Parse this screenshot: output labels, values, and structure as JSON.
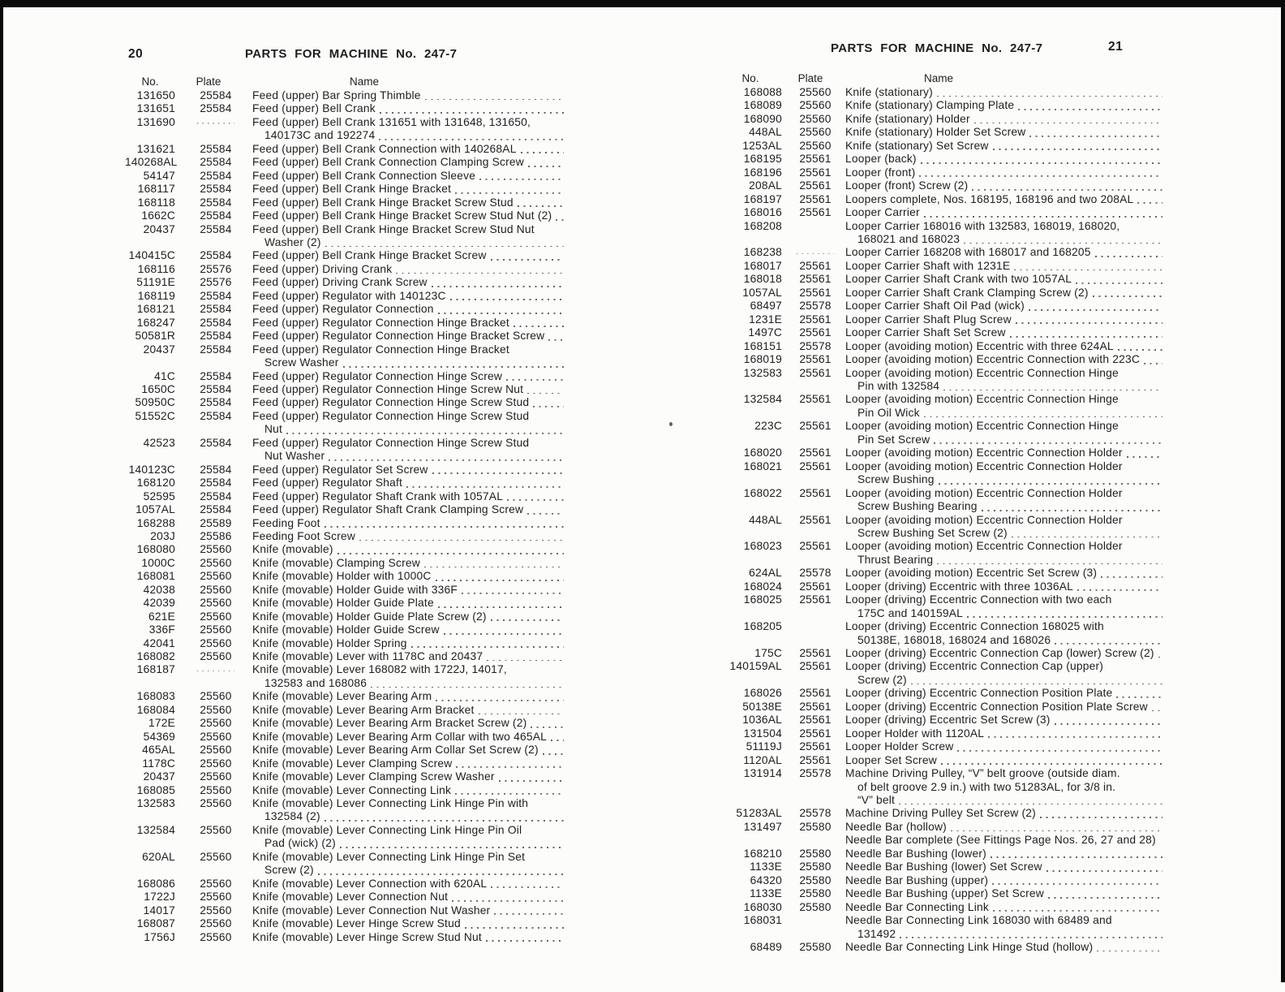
{
  "left": {
    "page_number": "20",
    "title": "PARTS FOR MACHINE No. 247-7",
    "columns": {
      "no": "No.",
      "plate": "Plate",
      "name": "Name"
    },
    "rows": [
      {
        "n": "131650",
        "p": "25584",
        "l": [
          "Feed (upper) Bar Spring Thimble"
        ]
      },
      {
        "n": "131651",
        "p": "25584",
        "l": [
          "Feed (upper) Bell Crank"
        ]
      },
      {
        "n": "131690",
        "p": "",
        "pd": true,
        "l": [
          "Feed (upper) Bell Crank 131651 with 131648, 131650,",
          "140173C and 192274"
        ]
      },
      {
        "n": "131621",
        "p": "25584",
        "l": [
          "Feed (upper) Bell Crank Connection with 140268AL"
        ]
      },
      {
        "n": "140268AL",
        "p": "25584",
        "l": [
          "Feed (upper) Bell Crank Connection Clamping Screw"
        ]
      },
      {
        "n": "54147",
        "p": "25584",
        "l": [
          "Feed (upper) Bell Crank Connection Sleeve"
        ]
      },
      {
        "n": "168117",
        "p": "25584",
        "l": [
          "Feed (upper) Bell Crank Hinge Bracket"
        ]
      },
      {
        "n": "168118",
        "p": "25584",
        "l": [
          "Feed (upper) Bell Crank Hinge Bracket Screw Stud"
        ]
      },
      {
        "n": "1662C",
        "p": "25584",
        "l": [
          "Feed (upper) Bell Crank Hinge Bracket Screw Stud Nut (2)"
        ]
      },
      {
        "n": "20437",
        "p": "25584",
        "l": [
          "Feed (upper) Bell Crank Hinge Bracket Screw Stud Nut",
          "Washer (2)"
        ]
      },
      {
        "n": "140415C",
        "p": "25584",
        "l": [
          "Feed (upper) Bell Crank Hinge Bracket Screw"
        ]
      },
      {
        "n": "168116",
        "p": "25576",
        "l": [
          "Feed (upper) Driving Crank"
        ]
      },
      {
        "n": "51191E",
        "p": "25576",
        "l": [
          "Feed (upper) Driving Crank Screw"
        ]
      },
      {
        "n": "168119",
        "p": "25584",
        "l": [
          "Feed (upper) Regulator with 140123C"
        ]
      },
      {
        "n": "168121",
        "p": "25584",
        "l": [
          "Feed (upper) Regulator Connection"
        ]
      },
      {
        "n": "168247",
        "p": "25584",
        "l": [
          "Feed (upper) Regulator Connection Hinge Bracket"
        ]
      },
      {
        "n": "50581R",
        "p": "25584",
        "l": [
          "Feed (upper) Regulator Connection Hinge Bracket Screw"
        ]
      },
      {
        "n": "20437",
        "p": "25584",
        "l": [
          "Feed (upper) Regulator Connection Hinge Bracket",
          "Screw Washer"
        ]
      },
      {
        "n": "41C",
        "p": "25584",
        "l": [
          "Feed (upper) Regulator Connection Hinge Screw"
        ]
      },
      {
        "n": "1650C",
        "p": "25584",
        "l": [
          "Feed (upper) Regulator Connection Hinge Screw Nut"
        ]
      },
      {
        "n": "50950C",
        "p": "25584",
        "l": [
          "Feed (upper) Regulator Connection Hinge Screw Stud"
        ]
      },
      {
        "n": "51552C",
        "p": "25584",
        "l": [
          "Feed (upper) Regulator Connection Hinge Screw Stud",
          "Nut"
        ]
      },
      {
        "n": "42523",
        "p": "25584",
        "l": [
          "Feed (upper) Regulator Connection Hinge Screw Stud",
          "Nut Washer"
        ]
      },
      {
        "n": "140123C",
        "p": "25584",
        "l": [
          "Feed (upper) Regulator Set Screw"
        ]
      },
      {
        "n": "168120",
        "p": "25584",
        "l": [
          "Feed (upper) Regulator Shaft"
        ]
      },
      {
        "n": "52595",
        "p": "25584",
        "l": [
          "Feed (upper) Regulator Shaft Crank with 1057AL"
        ]
      },
      {
        "n": "1057AL",
        "p": "25584",
        "l": [
          "Feed (upper) Regulator Shaft Crank Clamping Screw"
        ]
      },
      {
        "n": "168288",
        "p": "25589",
        "l": [
          "Feeding Foot"
        ]
      },
      {
        "n": "203J",
        "p": "25586",
        "l": [
          "Feeding Foot Screw"
        ]
      },
      {
        "n": "168080",
        "p": "25560",
        "l": [
          "Knife (movable)"
        ]
      },
      {
        "n": "1000C",
        "p": "25560",
        "l": [
          "Knife (movable) Clamping Screw"
        ]
      },
      {
        "n": "168081",
        "p": "25560",
        "l": [
          "Knife (movable) Holder with 1000C"
        ]
      },
      {
        "n": "42038",
        "p": "25560",
        "l": [
          "Knife (movable) Holder Guide with 336F"
        ]
      },
      {
        "n": "42039",
        "p": "25560",
        "l": [
          "Knife (movable) Holder Guide Plate"
        ]
      },
      {
        "n": "621E",
        "p": "25560",
        "l": [
          "Knife (movable) Holder Guide Plate Screw (2)"
        ]
      },
      {
        "n": "336F",
        "p": "25560",
        "l": [
          "Knife (movable) Holder Guide Screw"
        ]
      },
      {
        "n": "42041",
        "p": "25560",
        "l": [
          "Knife (movable) Holder Spring"
        ]
      },
      {
        "n": "168082",
        "p": "25560",
        "l": [
          "Knife (movable) Lever with 1178C and 20437"
        ]
      },
      {
        "n": "168187",
        "p": "",
        "pd": true,
        "l": [
          "Knife (movable) Lever 168082 with 1722J, 14017,",
          "132583 and 168086"
        ]
      },
      {
        "n": "168083",
        "p": "25560",
        "l": [
          "Knife (movable) Lever Bearing Arm"
        ]
      },
      {
        "n": "168084",
        "p": "25560",
        "l": [
          "Knife (movable) Lever Bearing Arm Bracket"
        ]
      },
      {
        "n": "172E",
        "p": "25560",
        "l": [
          "Knife (movable) Lever Bearing Arm Bracket Screw (2)"
        ]
      },
      {
        "n": "54369",
        "p": "25560",
        "l": [
          "Knife (movable) Lever Bearing Arm Collar with two 465AL"
        ]
      },
      {
        "n": "465AL",
        "p": "25560",
        "l": [
          "Knife (movable) Lever Bearing Arm Collar Set Screw (2)"
        ]
      },
      {
        "n": "1178C",
        "p": "25560",
        "l": [
          "Knife (movable) Lever Clamping Screw"
        ]
      },
      {
        "n": "20437",
        "p": "25560",
        "l": [
          "Knife (movable) Lever Clamping Screw Washer"
        ]
      },
      {
        "n": "168085",
        "p": "25560",
        "l": [
          "Knife (movable) Lever Connecting Link"
        ]
      },
      {
        "n": "132583",
        "p": "25560",
        "l": [
          "Knife (movable) Lever Connecting Link Hinge Pin with",
          "132584 (2)"
        ]
      },
      {
        "n": "132584",
        "p": "25560",
        "l": [
          "Knife (movable) Lever Connecting Link Hinge Pin Oil",
          "Pad (wick) (2)"
        ]
      },
      {
        "n": "620AL",
        "p": "25560",
        "l": [
          "Knife (movable) Lever Connecting Link Hinge Pin Set",
          "Screw (2)"
        ]
      },
      {
        "n": "168086",
        "p": "25560",
        "l": [
          "Knife (movable) Lever Connection with 620AL"
        ]
      },
      {
        "n": "1722J",
        "p": "25560",
        "l": [
          "Knife (movable) Lever Connection Nut"
        ]
      },
      {
        "n": "14017",
        "p": "25560",
        "l": [
          "Knife (movable) Lever Connection Nut Washer"
        ]
      },
      {
        "n": "168087",
        "p": "25560",
        "l": [
          "Knife (movable) Lever Hinge Screw Stud"
        ]
      },
      {
        "n": "1756J",
        "p": "25560",
        "l": [
          "Knife (movable) Lever Hinge Screw Stud Nut"
        ]
      }
    ]
  },
  "right": {
    "page_number": "21",
    "title": "PARTS FOR MACHINE No. 247-7",
    "columns": {
      "no": "No.",
      "plate": "Plate",
      "name": "Name"
    },
    "rows": [
      {
        "n": "168088",
        "p": "25560",
        "l": [
          "Knife (stationary)"
        ]
      },
      {
        "n": "168089",
        "p": "25560",
        "l": [
          "Knife (stationary) Clamping Plate"
        ]
      },
      {
        "n": "168090",
        "p": "25560",
        "l": [
          "Knife (stationary) Holder"
        ]
      },
      {
        "n": "448AL",
        "p": "25560",
        "l": [
          "Knife (stationary) Holder Set Screw"
        ]
      },
      {
        "n": "1253AL",
        "p": "25560",
        "l": [
          "Knife (stationary) Set Screw"
        ]
      },
      {
        "n": "168195",
        "p": "25561",
        "l": [
          "Looper (back)"
        ]
      },
      {
        "n": "168196",
        "p": "25561",
        "l": [
          "Looper (front)"
        ]
      },
      {
        "n": "208AL",
        "p": "25561",
        "l": [
          "Looper (front) Screw (2)"
        ]
      },
      {
        "n": "168197",
        "p": "25561",
        "l": [
          "Loopers complete, Nos. 168195, 168196 and two 208AL"
        ]
      },
      {
        "n": "168016",
        "p": "25561",
        "l": [
          "Looper Carrier"
        ]
      },
      {
        "n": "168208",
        "p": "",
        "l": [
          "Looper Carrier 168016 with 132583, 168019, 168020,",
          "168021 and 168023"
        ]
      },
      {
        "n": "168238",
        "p": "",
        "pd": true,
        "l": [
          "Looper Carrier 168208 with 168017 and 168205"
        ]
      },
      {
        "n": "168017",
        "p": "25561",
        "l": [
          "Looper Carrier Shaft with 1231E"
        ]
      },
      {
        "n": "168018",
        "p": "25561",
        "l": [
          "Looper Carrier Shaft Crank with two 1057AL"
        ]
      },
      {
        "n": "1057AL",
        "p": "25561",
        "l": [
          "Looper Carrier Shaft Crank Clamping Screw (2)"
        ]
      },
      {
        "n": "68497",
        "p": "25578",
        "l": [
          "Looper Carrier Shaft Oil Pad (wick)"
        ]
      },
      {
        "n": "1231E",
        "p": "25561",
        "l": [
          "Looper Carrier Shaft Plug Screw"
        ]
      },
      {
        "n": "1497C",
        "p": "25561",
        "l": [
          "Looper Carrier Shaft Set Screw"
        ]
      },
      {
        "n": "168151",
        "p": "25578",
        "l": [
          "Looper (avoiding motion) Eccentric with three 624AL"
        ]
      },
      {
        "n": "168019",
        "p": "25561",
        "l": [
          "Looper (avoiding motion) Eccentric Connection with 223C"
        ]
      },
      {
        "n": "132583",
        "p": "25561",
        "l": [
          "Looper (avoiding motion) Eccentric Connection Hinge",
          "Pin with 132584"
        ]
      },
      {
        "n": "132584",
        "p": "25561",
        "l": [
          "Looper (avoiding motion) Eccentric Connection Hinge",
          "Pin Oil Wick"
        ]
      },
      {
        "n": "223C",
        "p": "25561",
        "l": [
          "Looper (avoiding motion) Eccentric Connection Hinge",
          "Pin Set Screw"
        ]
      },
      {
        "n": "168020",
        "p": "25561",
        "l": [
          "Looper (avoiding motion) Eccentric Connection Holder"
        ]
      },
      {
        "n": "168021",
        "p": "25561",
        "l": [
          "Looper (avoiding motion) Eccentric Connection Holder",
          "Screw Bushing"
        ]
      },
      {
        "n": "168022",
        "p": "25561",
        "l": [
          "Looper (avoiding motion) Eccentric Connection Holder",
          "Screw Bushing Bearing"
        ]
      },
      {
        "n": "448AL",
        "p": "25561",
        "l": [
          "Looper (avoiding motion) Eccentric Connection Holder",
          "Screw Bushing Set Screw (2)"
        ]
      },
      {
        "n": "168023",
        "p": "25561",
        "l": [
          "Looper (avoiding motion) Eccentric Connection Holder",
          "Thrust Bearing"
        ]
      },
      {
        "n": "624AL",
        "p": "25578",
        "l": [
          "Looper (avoiding motion) Eccentric Set Screw (3)"
        ]
      },
      {
        "n": "168024",
        "p": "25561",
        "l": [
          "Looper (driving) Eccentric with three 1036AL"
        ]
      },
      {
        "n": "168025",
        "p": "25561",
        "l": [
          "Looper (driving) Eccentric Connection with two each",
          "175C and 140159AL"
        ]
      },
      {
        "n": "168205",
        "p": "",
        "l": [
          "Looper (driving) Eccentric Connection 168025 with",
          "50138E, 168018, 168024 and 168026"
        ]
      },
      {
        "n": "175C",
        "p": "25561",
        "l": [
          "Looper (driving) Eccentric Connection Cap (lower) Screw (2)"
        ]
      },
      {
        "n": "140159AL",
        "p": "25561",
        "l": [
          "Looper (driving) Eccentric Connection Cap (upper)",
          "Screw (2)"
        ]
      },
      {
        "n": "168026",
        "p": "25561",
        "l": [
          "Looper (driving) Eccentric Connection Position Plate"
        ]
      },
      {
        "n": "50138E",
        "p": "25561",
        "l": [
          "Looper (driving) Eccentric Connection Position Plate Screw"
        ]
      },
      {
        "n": "1036AL",
        "p": "25561",
        "l": [
          "Looper (driving) Eccentric Set Screw (3)"
        ]
      },
      {
        "n": "131504",
        "p": "25561",
        "l": [
          "Looper Holder with 1120AL"
        ]
      },
      {
        "n": "51119J",
        "p": "25561",
        "l": [
          "Looper Holder Screw"
        ]
      },
      {
        "n": "1120AL",
        "p": "25561",
        "l": [
          "Looper Set Screw"
        ]
      },
      {
        "n": "131914",
        "p": "25578",
        "l": [
          "Machine Driving Pulley, “V” belt groove (outside diam.",
          "of belt groove 2.9 in.) with two 51283AL, for 3/8 in.",
          "“V” belt"
        ]
      },
      {
        "n": "51283AL",
        "p": "25578",
        "l": [
          "Machine Driving Pulley Set Screw (2)"
        ]
      },
      {
        "n": "131497",
        "p": "25580",
        "l": [
          "Needle Bar (hollow)"
        ]
      },
      {
        "n": "",
        "p": "",
        "nl": false,
        "l": [
          "Needle Bar complete (See Fittings Page Nos. 26, 27 and 28)"
        ]
      },
      {
        "n": "168210",
        "p": "25580",
        "l": [
          "Needle Bar Bushing (lower)"
        ]
      },
      {
        "n": "1133E",
        "p": "25580",
        "l": [
          "Needle Bar Bushing (lower) Set Screw"
        ]
      },
      {
        "n": "64320",
        "p": "25580",
        "l": [
          "Needle Bar Bushing (upper)"
        ]
      },
      {
        "n": "1133E",
        "p": "25580",
        "l": [
          "Needle Bar Bushing (upper) Set Screw"
        ]
      },
      {
        "n": "168030",
        "p": "25580",
        "l": [
          "Needle Bar Connecting Link"
        ]
      },
      {
        "n": "168031",
        "p": "",
        "l": [
          "Needle Bar Connecting Link 168030 with 68489 and",
          "131492"
        ]
      },
      {
        "n": "68489",
        "p": "25580",
        "l": [
          "Needle Bar Connecting Link Hinge Stud (hollow)"
        ]
      }
    ]
  }
}
